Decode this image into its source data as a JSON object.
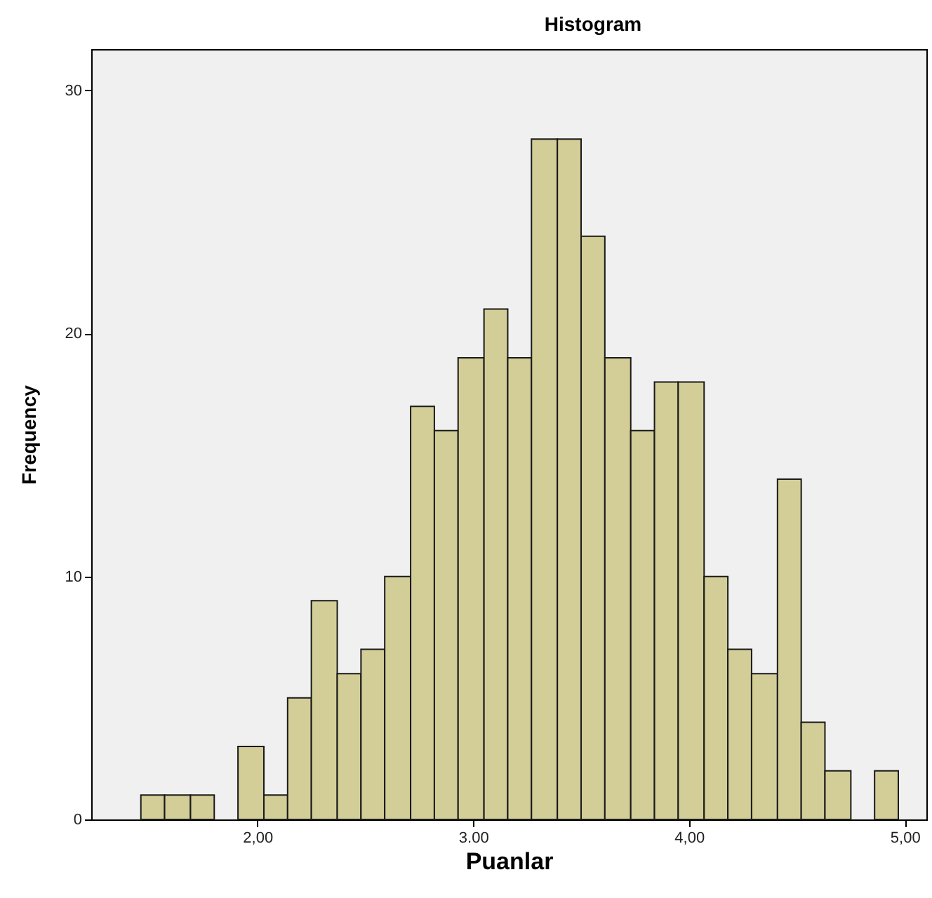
{
  "chart_data": {
    "type": "histogram",
    "title": "Histogram",
    "xlabel": "Puanlar",
    "ylabel": "Frequency",
    "color": "#d3ce97",
    "bins": [
      1.46,
      1.57,
      1.69,
      1.8,
      1.91,
      2.03,
      2.14,
      2.25,
      2.37,
      2.48,
      2.59,
      2.71,
      2.82,
      2.93,
      3.05,
      3.16,
      3.27,
      3.39,
      3.5,
      3.61,
      3.73,
      3.84,
      3.95,
      4.07,
      4.18,
      4.29,
      4.41,
      4.52,
      4.63,
      4.75,
      4.86,
      4.97
    ],
    "values": [
      1,
      1,
      1,
      0,
      3,
      1,
      5,
      9,
      6,
      7,
      10,
      17,
      16,
      19,
      21,
      19,
      28,
      28,
      24,
      19,
      16,
      18,
      18,
      10,
      7,
      6,
      14,
      4,
      2,
      0,
      2
    ],
    "xlim": [
      1.23,
      5.1
    ],
    "xticks": [
      {
        "value": 2,
        "label": "2,00"
      },
      {
        "value": 3,
        "label": "3.00"
      },
      {
        "value": 4,
        "label": "4,00"
      },
      {
        "value": 5,
        "label": "5,00"
      }
    ],
    "ylim": [
      0,
      31.7
    ],
    "yticks": [
      0,
      10,
      20,
      30
    ],
    "grid": false
  }
}
